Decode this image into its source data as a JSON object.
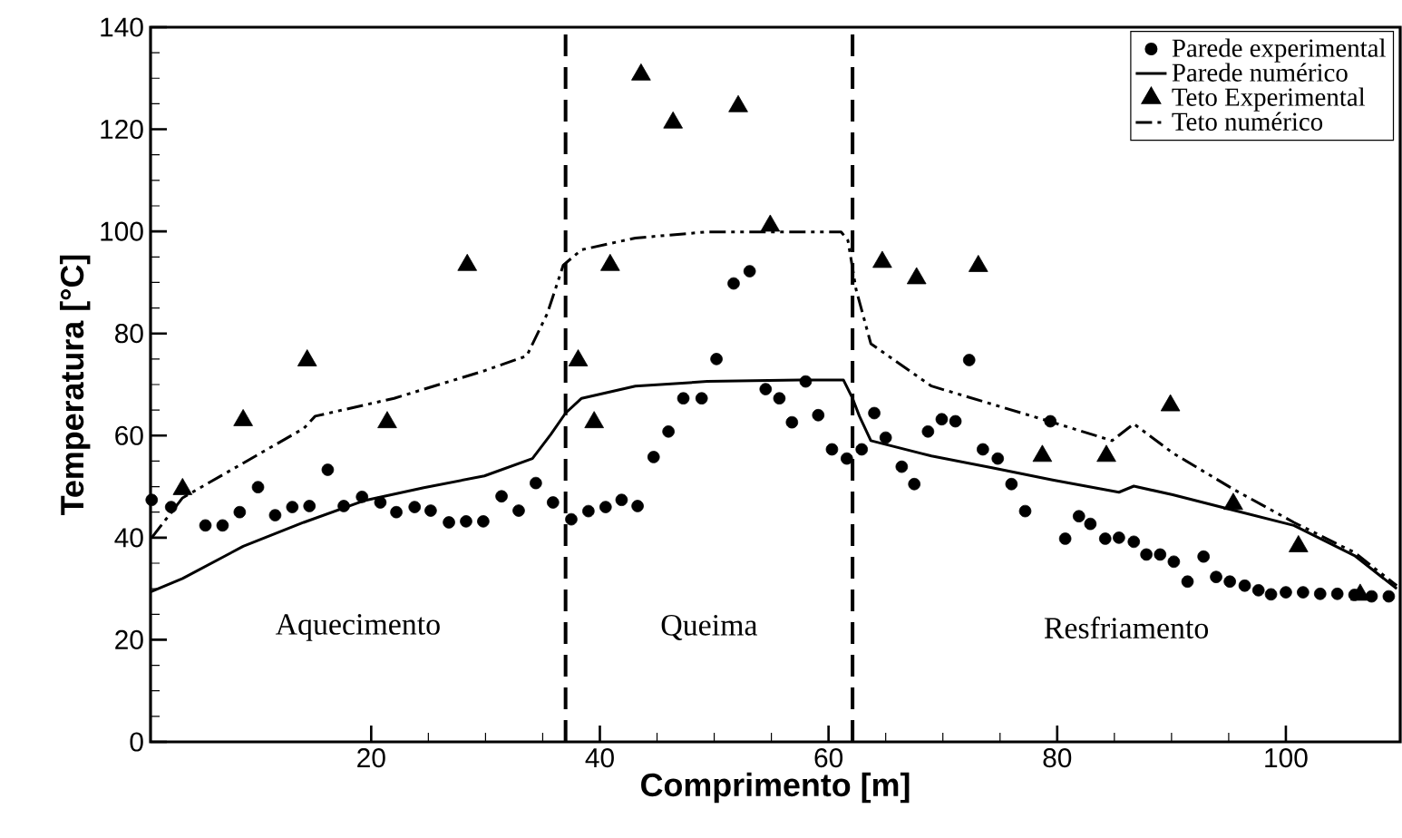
{
  "chart_data": {
    "type": "scatter",
    "xlabel": "Comprimento [m]",
    "ylabel": "Temperatura [°C]",
    "xlim": [
      0.7,
      110
    ],
    "ylim": [
      0,
      140
    ],
    "xticks": [
      20,
      40,
      60,
      80,
      100
    ],
    "yticks": [
      0,
      20,
      40,
      60,
      80,
      100,
      120,
      140
    ],
    "grid": false,
    "legend": "top right",
    "series": [
      {
        "name": "Parede experimental",
        "marker": "circle",
        "color": "#000000",
        "x": [
          0.8,
          2.5,
          5.5,
          7.0,
          8.5,
          10.1,
          11.6,
          13.1,
          14.6,
          16.2,
          17.6,
          19.2,
          20.8,
          22.2,
          23.8,
          25.2,
          26.8,
          28.3,
          29.8,
          31.4,
          32.9,
          34.4,
          35.9,
          37.5,
          39.0,
          40.5,
          41.9,
          43.3,
          44.7,
          46.0,
          47.3,
          48.9,
          50.2,
          51.7,
          53.1,
          54.5,
          55.7,
          56.8,
          58.0,
          59.1,
          60.3,
          61.6,
          62.9,
          64.0,
          65.0,
          66.4,
          67.5,
          68.7,
          69.9,
          71.1,
          72.3,
          73.5,
          74.8,
          76.0,
          77.2,
          79.4,
          80.7,
          81.9,
          82.9,
          84.2,
          85.4,
          86.7,
          87.8,
          89.0,
          90.2,
          91.4,
          92.8,
          93.9,
          95.1,
          96.4,
          97.6,
          98.7,
          100.0,
          101.5,
          103.0,
          104.5,
          106.0,
          107.5,
          109.0
        ],
        "values": [
          47.4,
          46,
          42.4,
          42.4,
          45,
          49.9,
          44.4,
          46,
          46.2,
          53.3,
          46.2,
          48,
          46.9,
          45,
          46,
          45.3,
          43,
          43.2,
          43.2,
          48.1,
          45.3,
          50.7,
          46.9,
          43.6,
          45.2,
          46,
          47.4,
          46.2,
          55.8,
          60.8,
          67.3,
          67.3,
          75,
          89.8,
          92.2,
          69.1,
          67.3,
          62.6,
          70.6,
          64,
          57.3,
          55.5,
          57.3,
          64.4,
          59.6,
          53.9,
          50.5,
          60.8,
          63.2,
          62.8,
          74.8,
          57.3,
          55.5,
          50.5,
          45.2,
          62.8,
          39.8,
          44.2,
          42.7,
          39.8,
          40,
          39.2,
          36.7,
          36.7,
          35.3,
          31.4,
          36.3,
          32.3,
          31.4,
          30.6,
          29.7,
          28.9,
          29.3,
          29.3,
          29,
          29,
          28.8,
          28.5,
          28.5
        ]
      },
      {
        "name": "Parede numérico",
        "type": "line",
        "marker": "none",
        "line_style": "solid",
        "color": "#000000",
        "x": [
          0.7,
          3.5,
          8.8,
          14.1,
          19.3,
          24.6,
          29.9,
          34.1,
          35.7,
          37.0,
          38.4,
          43.1,
          49.4,
          57.4,
          61.3,
          62.1,
          62.7,
          63.7,
          69.0,
          74.3,
          79.6,
          85.4,
          86.7,
          90.1,
          95.4,
          100.7,
          106.0,
          109.7
        ],
        "values": [
          29.4,
          32,
          38.3,
          43,
          47.2,
          49.8,
          52.1,
          55.5,
          60.2,
          64.4,
          67.3,
          69.7,
          70.6,
          70.9,
          70.9,
          67.3,
          63.8,
          59,
          56,
          53.7,
          51.3,
          48.9,
          50.1,
          48.4,
          45.4,
          42.4,
          36.5,
          30
        ]
      },
      {
        "name": "Teto Experimental",
        "marker": "triangle",
        "color": "#000000",
        "x": [
          3.5,
          8.8,
          14.4,
          21.4,
          28.4,
          38.1,
          39.5,
          40.9,
          43.6,
          46.4,
          52.1,
          54.9,
          64.7,
          67.7,
          73.1,
          78.7,
          84.3,
          89.9,
          95.4,
          101.1,
          106.5
        ],
        "values": [
          49.5,
          63,
          74.7,
          62.6,
          93.4,
          74.7,
          62.6,
          93.4,
          130.7,
          121.3,
          124.5,
          101.1,
          94,
          90.8,
          93.2,
          56,
          56,
          65.9,
          46.6,
          38.3,
          28.8
        ]
      },
      {
        "name": "Teto numérico",
        "type": "line",
        "marker": "none",
        "line_style": "dashed",
        "color": "#000000",
        "x": [
          0.8,
          3.5,
          14.1,
          15.1,
          22.0,
          29.9,
          33.6,
          35.4,
          36.8,
          38.4,
          43.1,
          49.4,
          61.1,
          61.7,
          62.4,
          63.7,
          69.0,
          79.6,
          84.8,
          86.7,
          90.1,
          95.4,
          100.7,
          106.0,
          109.7
        ],
        "values": [
          40,
          47.8,
          61.4,
          63.8,
          67.3,
          72.7,
          75.6,
          83.9,
          93.4,
          96.4,
          98.7,
          99.9,
          99.9,
          98.2,
          88.7,
          78,
          69.7,
          62.6,
          59,
          62.3,
          56.6,
          49.5,
          43,
          37.1,
          30.6
        ]
      }
    ],
    "ref_lines": [
      {
        "axis": "x",
        "value": 37.0,
        "line_style": "dashed",
        "color": "#000000"
      },
      {
        "axis": "x",
        "value": 62.1,
        "line_style": "dashed",
        "color": "#000000"
      }
    ],
    "annotations": [
      "Aquecimento",
      "Queima",
      "Resfriamento"
    ]
  }
}
